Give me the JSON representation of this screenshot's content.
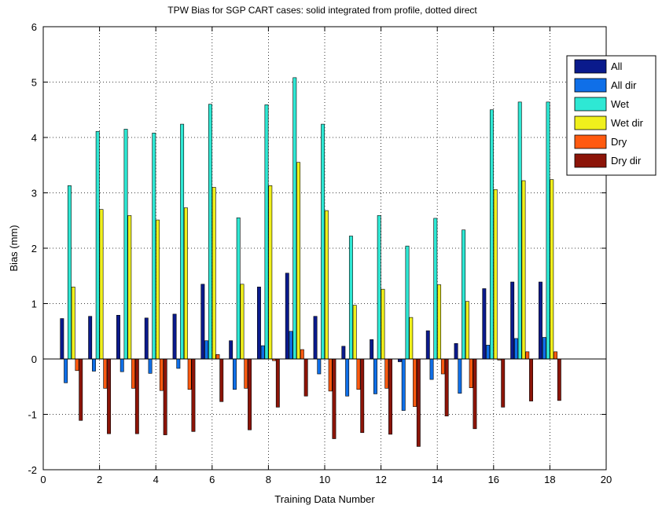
{
  "chart_data": {
    "type": "bar",
    "title": "TPW Bias for SGP CART cases: solid integrated from profile, dotted direct",
    "xlabel": "Training Data Number",
    "ylabel": "Bias (mm)",
    "xlim": [
      0,
      20
    ],
    "ylim": [
      -2,
      6
    ],
    "xticks": [
      "0",
      "2",
      "4",
      "6",
      "8",
      "10",
      "12",
      "14",
      "16",
      "18",
      "20"
    ],
    "yticks": [
      "-2",
      "-1",
      "0",
      "1",
      "2",
      "3",
      "4",
      "5",
      "6"
    ],
    "grid": true,
    "legend_position": "top-right",
    "x": [
      1,
      2,
      3,
      4,
      5,
      6,
      7,
      8,
      9,
      10,
      11,
      12,
      13,
      14,
      15,
      16,
      17,
      18
    ],
    "series": [
      {
        "name": "All",
        "color": "#0a1a8c",
        "values": [
          0.73,
          0.77,
          0.79,
          0.74,
          0.81,
          1.35,
          0.33,
          1.3,
          1.55,
          0.77,
          0.23,
          0.35,
          -0.05,
          0.51,
          0.28,
          1.27,
          1.39,
          1.39
        ]
      },
      {
        "name": "All dir",
        "color": "#0f6fe8",
        "values": [
          -0.43,
          -0.22,
          -0.23,
          -0.26,
          -0.17,
          0.33,
          -0.55,
          0.24,
          0.5,
          -0.27,
          -0.67,
          -0.63,
          -0.93,
          -0.37,
          -0.62,
          0.25,
          0.37,
          0.39
        ]
      },
      {
        "name": "Wet",
        "color": "#2ee8d4",
        "values": [
          3.13,
          4.11,
          4.15,
          4.08,
          4.24,
          4.6,
          2.55,
          4.59,
          5.08,
          4.24,
          2.22,
          2.59,
          2.04,
          2.54,
          2.33,
          4.5,
          4.64,
          4.64
        ]
      },
      {
        "name": "Wet dir",
        "color": "#f0f01c",
        "values": [
          1.3,
          2.7,
          2.59,
          2.51,
          2.73,
          3.1,
          1.35,
          3.13,
          3.55,
          2.68,
          0.97,
          1.26,
          0.75,
          1.34,
          1.04,
          3.06,
          3.22,
          3.24
        ]
      },
      {
        "name": "Dry",
        "color": "#ff5a10",
        "values": [
          -0.21,
          -0.53,
          -0.53,
          -0.57,
          -0.55,
          0.08,
          -0.53,
          -0.03,
          0.17,
          -0.58,
          -0.55,
          -0.53,
          -0.86,
          -0.27,
          -0.52,
          -0.02,
          0.13,
          0.13
        ]
      },
      {
        "name": "Dry dir",
        "color": "#8c1408",
        "values": [
          -1.11,
          -1.35,
          -1.35,
          -1.37,
          -1.31,
          -0.77,
          -1.28,
          -0.87,
          -0.67,
          -1.44,
          -1.33,
          -1.36,
          -1.58,
          -1.03,
          -1.26,
          -0.87,
          -0.76,
          -0.75
        ]
      }
    ]
  }
}
